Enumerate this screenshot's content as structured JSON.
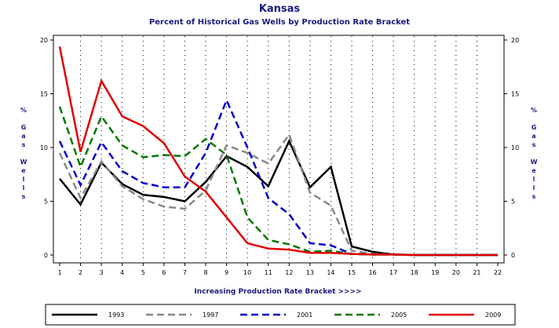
{
  "chart_data": {
    "type": "line",
    "title": "Kansas",
    "subtitle": "Percent of Historical Gas Wells by Production Rate Bracket",
    "xlabel": "Increasing Production Rate Bracket >>>>",
    "ylabel": "% Gas Wells",
    "x": [
      1,
      2,
      3,
      4,
      5,
      6,
      7,
      8,
      9,
      10,
      11,
      12,
      13,
      14,
      15,
      16,
      17,
      18,
      19,
      20,
      21,
      22
    ],
    "xlim": [
      1,
      22
    ],
    "ylim": [
      0,
      20
    ],
    "yticks": [
      0,
      5,
      10,
      15,
      20
    ],
    "grid": true,
    "legend_position": "bottom",
    "series": [
      {
        "name": "1993",
        "color": "#000000",
        "dash": "solid",
        "values": [
          7.1,
          4.7,
          8.6,
          6.6,
          5.6,
          5.4,
          5.0,
          6.8,
          9.2,
          8.2,
          6.4,
          10.6,
          6.3,
          8.2,
          0.8,
          0.3,
          0.05,
          0.0,
          0.0,
          0.0,
          0.0,
          0.0
        ]
      },
      {
        "name": "1997",
        "color": "#888888",
        "dash": "dashed",
        "values": [
          9.5,
          5.3,
          8.7,
          6.4,
          5.2,
          4.5,
          4.3,
          6.0,
          10.2,
          9.5,
          8.5,
          11.2,
          5.8,
          4.6,
          0.4,
          0.1,
          0.05,
          0.0,
          0.0,
          0.0,
          0.0,
          0.0
        ]
      },
      {
        "name": "2001",
        "color": "#0000cc",
        "dash": "dashed",
        "values": [
          10.6,
          6.5,
          10.5,
          7.8,
          6.7,
          6.3,
          6.3,
          9.5,
          14.4,
          10.0,
          5.3,
          3.8,
          1.1,
          0.9,
          0.1,
          0.05,
          0.05,
          0.0,
          0.0,
          0.0,
          0.0,
          0.0
        ]
      },
      {
        "name": "2005",
        "color": "#007700",
        "dash": "dashed",
        "values": [
          13.8,
          8.2,
          12.9,
          10.2,
          9.1,
          9.3,
          9.2,
          10.8,
          9.3,
          3.5,
          1.4,
          1.0,
          0.3,
          0.4,
          0.1,
          0.05,
          0.05,
          0.0,
          0.0,
          0.0,
          0.0,
          0.0
        ]
      },
      {
        "name": "2009",
        "color": "#e00000",
        "dash": "solid",
        "values": [
          19.4,
          9.6,
          16.2,
          12.9,
          12.0,
          10.4,
          7.3,
          5.9,
          3.5,
          1.1,
          0.6,
          0.5,
          0.2,
          0.2,
          0.1,
          0.05,
          0.05,
          0.0,
          0.0,
          0.0,
          0.0,
          0.0
        ]
      }
    ]
  }
}
